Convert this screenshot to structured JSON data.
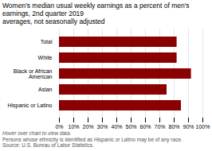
{
  "chart_data": {
    "type": "bar",
    "orientation": "horizontal",
    "title": "Women's median usual weekly earnings as a percent of men's earnings, 2nd quarter 2019",
    "subtitle": "averages, not seasonally adjusted",
    "annotations": [
      "Hover over chart to view data.",
      "Persons whose ethnicity is identified as Hispanic or Latino may be of any race.",
      "Source: U.S. Bureau of Labor Statistics."
    ],
    "categories": [
      "Hispanic or Latino",
      "Asian",
      "Black or African\nAmerican",
      "White",
      "Total"
    ],
    "values": [
      85,
      75,
      92,
      82,
      82
    ],
    "color": "#8b0000",
    "xlim": [
      0,
      100
    ],
    "xticks": [
      {
        "value": 0,
        "label": "0%"
      },
      {
        "value": 10,
        "label": "10%"
      },
      {
        "value": 20,
        "label": "20%"
      },
      {
        "value": 30,
        "label": "30%"
      },
      {
        "value": 40,
        "label": "40%"
      },
      {
        "value": 50,
        "label": "50%"
      },
      {
        "value": 60,
        "label": "60%"
      },
      {
        "value": 70,
        "label": "70%"
      },
      {
        "value": 80,
        "label": "80%"
      },
      {
        "value": 90,
        "label": "90%"
      },
      {
        "value": 100,
        "label": "100%"
      }
    ],
    "grid": true
  }
}
